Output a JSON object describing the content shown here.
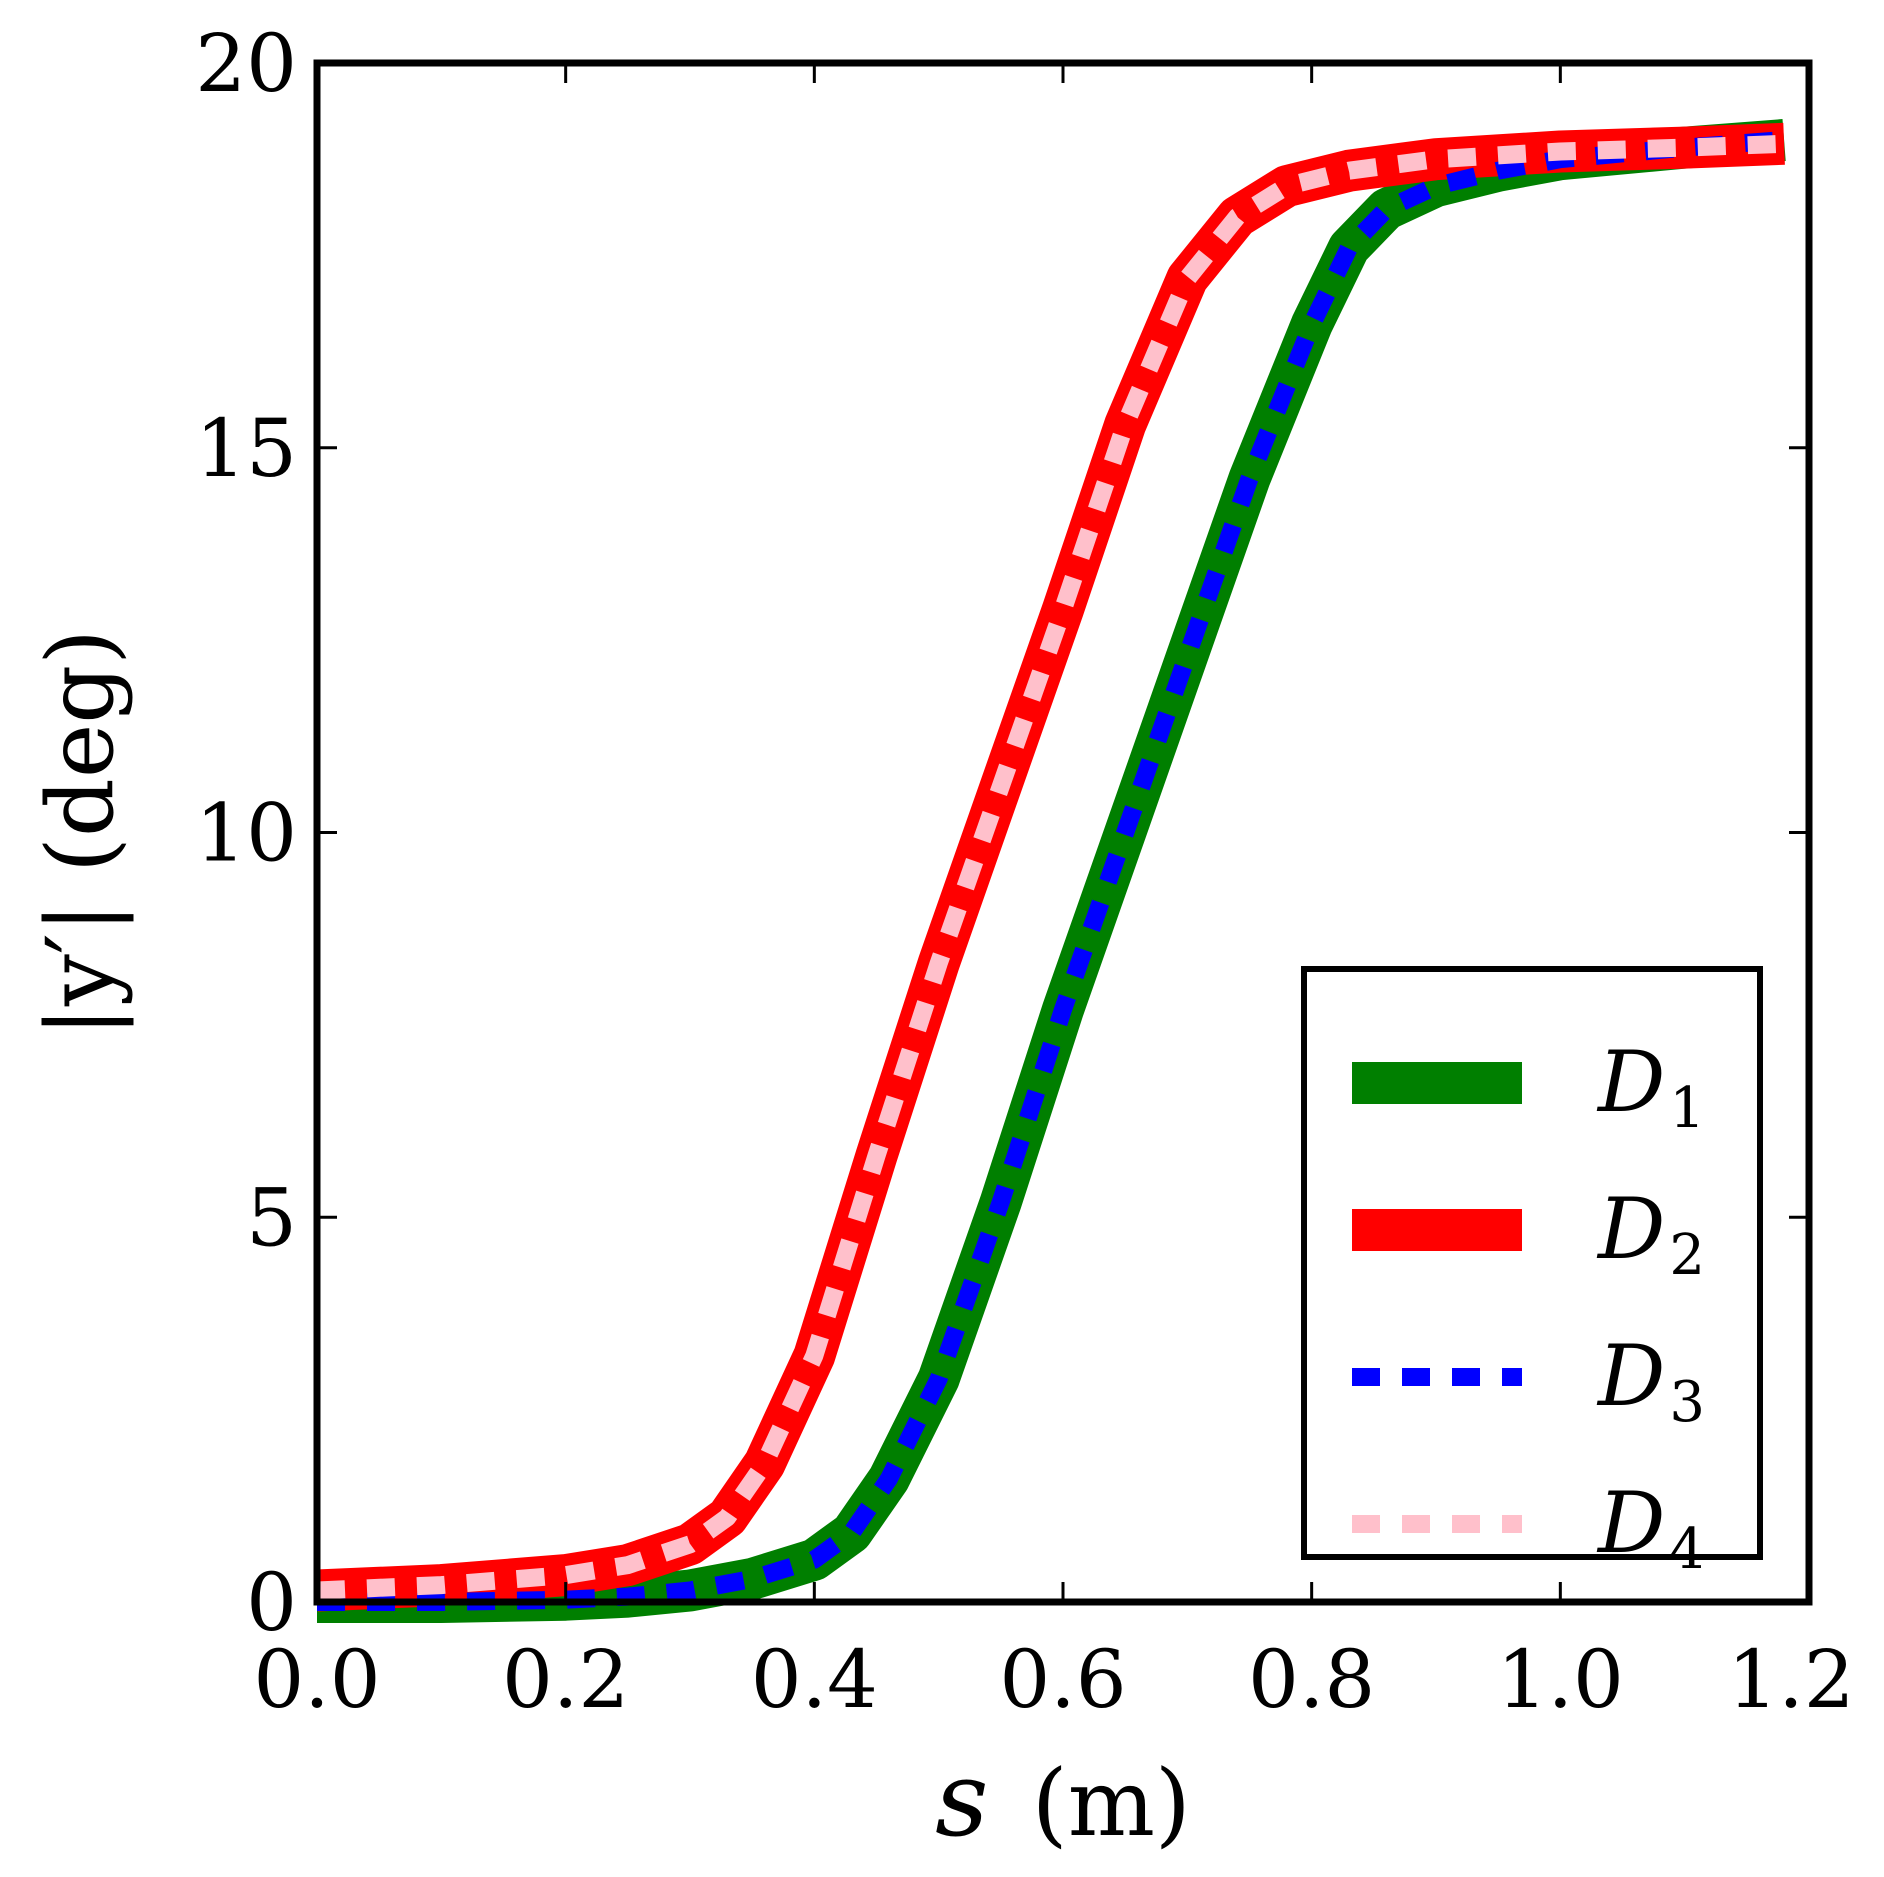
{
  "chart_data": {
    "type": "line",
    "title": "",
    "xlabel": "s (m)",
    "xlabel_var": "s",
    "xlabel_unit": "(m)",
    "ylabel": "|y′|  (deg)",
    "xlim": [
      0.0,
      1.2
    ],
    "ylim": [
      0,
      20
    ],
    "xticks": [
      0.0,
      0.2,
      0.4,
      0.6,
      0.8,
      1.0,
      1.2
    ],
    "xtick_labels": [
      "0.0",
      "0.2",
      "0.4",
      "0.6",
      "0.8",
      "1.0",
      "1.2"
    ],
    "yticks": [
      0,
      5,
      10,
      15,
      20
    ],
    "ytick_labels": [
      "0",
      "5",
      "10",
      "15",
      "20"
    ],
    "grid": false,
    "legend_position": "lower-right",
    "series": [
      {
        "name": "D1",
        "label_base": "D",
        "label_sub": "1",
        "color": "#007f00",
        "style": "solid",
        "width": "thick",
        "x": [
          0.0,
          0.1,
          0.2,
          0.25,
          0.3,
          0.35,
          0.4,
          0.43,
          0.46,
          0.5,
          0.55,
          0.6,
          0.65,
          0.7,
          0.75,
          0.8,
          0.83,
          0.86,
          0.9,
          0.95,
          1.0,
          1.1,
          1.18
        ],
        "y": [
          0.0,
          0.0,
          0.03,
          0.07,
          0.15,
          0.3,
          0.55,
          0.9,
          1.6,
          2.9,
          5.2,
          7.7,
          10.0,
          12.3,
          14.6,
          16.6,
          17.6,
          18.1,
          18.4,
          18.6,
          18.75,
          18.9,
          19.0
        ]
      },
      {
        "name": "D2",
        "label_base": "D",
        "label_sub": "2",
        "color": "#ff0000",
        "style": "solid",
        "width": "thick",
        "x": [
          0.0,
          0.1,
          0.2,
          0.25,
          0.3,
          0.33,
          0.36,
          0.4,
          0.45,
          0.5,
          0.55,
          0.6,
          0.65,
          0.7,
          0.74,
          0.78,
          0.83,
          0.9,
          1.0,
          1.1,
          1.18
        ],
        "y": [
          0.15,
          0.22,
          0.35,
          0.48,
          0.75,
          1.1,
          1.8,
          3.2,
          5.8,
          8.3,
          10.6,
          12.9,
          15.3,
          17.2,
          18.0,
          18.4,
          18.6,
          18.75,
          18.85,
          18.9,
          18.95
        ]
      },
      {
        "name": "D3",
        "label_base": "D",
        "label_sub": "3",
        "color": "#0000ff",
        "style": "dashed",
        "width": "medium",
        "x": [
          0.0,
          0.1,
          0.2,
          0.25,
          0.3,
          0.35,
          0.4,
          0.43,
          0.46,
          0.5,
          0.55,
          0.6,
          0.65,
          0.7,
          0.75,
          0.8,
          0.83,
          0.86,
          0.9,
          0.95,
          1.0,
          1.1,
          1.18
        ],
        "y": [
          0.0,
          0.0,
          0.03,
          0.07,
          0.15,
          0.3,
          0.55,
          0.9,
          1.6,
          2.9,
          5.2,
          7.7,
          10.0,
          12.3,
          14.6,
          16.6,
          17.6,
          18.1,
          18.4,
          18.6,
          18.75,
          18.9,
          19.0
        ]
      },
      {
        "name": "D4",
        "label_base": "D",
        "label_sub": "4",
        "color": "#ffc0cb",
        "style": "dashed",
        "width": "medium",
        "x": [
          0.0,
          0.1,
          0.2,
          0.25,
          0.3,
          0.33,
          0.36,
          0.4,
          0.45,
          0.5,
          0.55,
          0.6,
          0.65,
          0.7,
          0.74,
          0.78,
          0.83,
          0.9,
          1.0,
          1.1,
          1.18
        ],
        "y": [
          0.15,
          0.22,
          0.35,
          0.48,
          0.75,
          1.1,
          1.8,
          3.2,
          5.8,
          8.3,
          10.6,
          12.9,
          15.3,
          17.2,
          18.0,
          18.4,
          18.6,
          18.75,
          18.85,
          18.9,
          18.95
        ]
      }
    ]
  }
}
